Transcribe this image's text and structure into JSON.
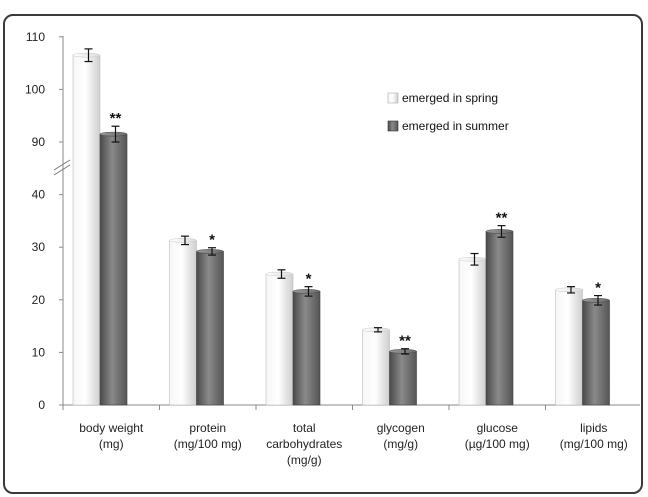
{
  "chart_data": {
    "type": "bar",
    "title": "",
    "xlabel": "",
    "ylabel": "",
    "categories": [
      [
        "body weight",
        "(mg)"
      ],
      [
        "protein",
        "(mg/100 mg)"
      ],
      [
        "total",
        "carbohydrates",
        "(mg/g)"
      ],
      [
        "glycogen",
        "(mg/g)"
      ],
      [
        "glucose",
        "(µg/100 mg)"
      ],
      [
        "lipids",
        "(mg/100 mg)"
      ]
    ],
    "y_ticks": [
      "0",
      "10",
      "20",
      "30",
      "40",
      "90",
      "100",
      "110"
    ],
    "axis_break": "between 40 and 90",
    "series": [
      {
        "name": "emerged in spring",
        "color": "#e4e4e4",
        "values": [
          106.5,
          31.3,
          24.9,
          14.3,
          27.7,
          21.9
        ],
        "errors": [
          1.2,
          0.8,
          0.8,
          0.4,
          1.1,
          0.6
        ],
        "significance": [
          "",
          "",
          "",
          "",
          "",
          ""
        ]
      },
      {
        "name": "emerged in summer",
        "color": "#6e6e6e",
        "values": [
          91.5,
          29.2,
          21.6,
          10.2,
          33.0,
          19.9
        ],
        "errors": [
          1.5,
          0.7,
          0.9,
          0.5,
          1.1,
          0.9
        ],
        "significance": [
          "**",
          "*",
          "*",
          "**",
          "**",
          "*"
        ]
      }
    ],
    "legend": {
      "position": "top-right"
    },
    "grid": false
  }
}
